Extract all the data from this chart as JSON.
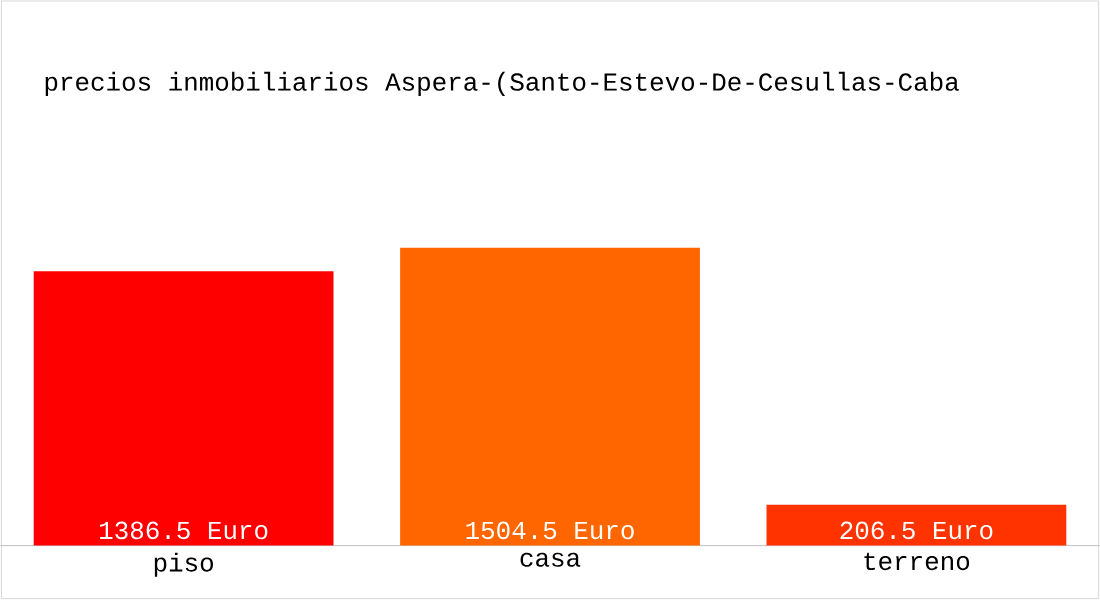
{
  "chart_data": {
    "type": "bar",
    "title": "precios inmobiliarios Aspera-(Santo-Estevo-De-Cesullas-Caba",
    "categories": [
      "piso",
      "casa",
      "terreno"
    ],
    "values": [
      1386.5,
      1504.5,
      206.5
    ],
    "colors": [
      "#ff0000",
      "#ff6600",
      "#ff3300"
    ],
    "value_labels": [
      "1386.5 Euro",
      "1504.5 Euro",
      "206.5 Euro"
    ]
  }
}
